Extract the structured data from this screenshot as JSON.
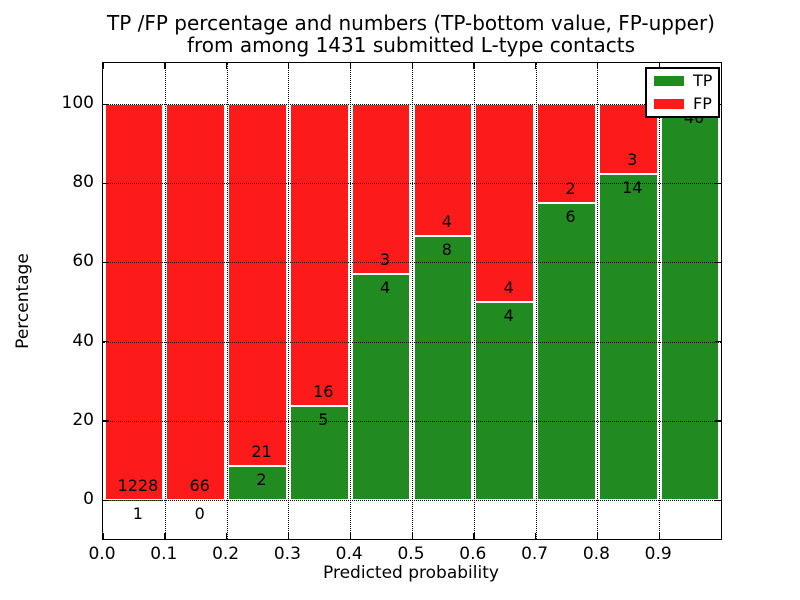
{
  "title": {
    "line1": "TP /FP percentage and numbers (TP-bottom value, FP-upper)",
    "line2": "from among 1431 submitted L-type contacts"
  },
  "axes": {
    "xlabel": "Predicted probability",
    "ylabel": "Percentage",
    "xtick_labels": [
      "0.0",
      "0.1",
      "0.2",
      "0.3",
      "0.4",
      "0.5",
      "0.6",
      "0.7",
      "0.8",
      "0.9"
    ],
    "ytick_labels": [
      "0",
      "20",
      "40",
      "60",
      "80",
      "100"
    ],
    "ytick_values": [
      0,
      20,
      40,
      60,
      80,
      100
    ]
  },
  "legend": {
    "items": [
      {
        "label": "TP",
        "color": "#218a21"
      },
      {
        "label": "FP",
        "color": "#fd1a1a"
      }
    ]
  },
  "colors": {
    "tp_green": "#218a21",
    "fp_red": "#fd1a1a",
    "background": "#ffffff",
    "grid": "#000000"
  },
  "chart_data": {
    "type": "bar",
    "stacked": true,
    "normalized_to_percent": true,
    "title": "TP /FP percentage and numbers (TP-bottom value, FP-upper) from among 1431 submitted L-type contacts",
    "xlabel": "Predicted probability",
    "ylabel": "Percentage",
    "x_bin_edges": [
      0.0,
      0.1,
      0.2,
      0.3,
      0.4,
      0.5,
      0.6,
      0.7,
      0.8,
      0.9,
      1.0
    ],
    "ylim": [
      -10,
      110
    ],
    "grid": true,
    "legend_position": "upper right",
    "series": [
      {
        "name": "TP",
        "color": "#218a21",
        "counts": [
          1,
          0,
          2,
          5,
          4,
          8,
          4,
          6,
          14,
          40
        ],
        "pct": [
          0.08,
          0.0,
          8.7,
          23.81,
          57.14,
          66.67,
          50.0,
          75.0,
          82.35,
          100.0
        ]
      },
      {
        "name": "FP",
        "color": "#fd1a1a",
        "counts": [
          1228,
          66,
          21,
          16,
          3,
          4,
          4,
          2,
          3,
          null
        ],
        "pct": [
          99.92,
          100.0,
          91.3,
          76.19,
          42.86,
          33.33,
          50.0,
          25.0,
          17.65,
          0.0
        ]
      }
    ],
    "bar_count_labels": {
      "tp": [
        "1",
        "0",
        "2",
        "5",
        "4",
        "8",
        "4",
        "6",
        "14",
        "40"
      ],
      "fp": [
        "1228",
        "66",
        "21",
        "16",
        "3",
        "4",
        "4",
        "2",
        "3",
        ""
      ]
    }
  }
}
